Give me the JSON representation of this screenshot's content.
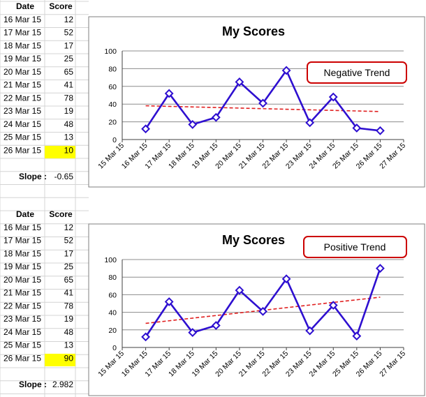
{
  "tables": [
    {
      "headers": {
        "date": "Date",
        "score": "Score"
      },
      "rows": [
        {
          "date": "16 Mar 15",
          "score": "12"
        },
        {
          "date": "17 Mar 15",
          "score": "52"
        },
        {
          "date": "18 Mar 15",
          "score": "17"
        },
        {
          "date": "19 Mar 15",
          "score": "25"
        },
        {
          "date": "20 Mar 15",
          "score": "65"
        },
        {
          "date": "21 Mar 15",
          "score": "41"
        },
        {
          "date": "22 Mar 15",
          "score": "78"
        },
        {
          "date": "23 Mar 15",
          "score": "19"
        },
        {
          "date": "24 Mar 15",
          "score": "48"
        },
        {
          "date": "25 Mar 15",
          "score": "13"
        },
        {
          "date": "26 Mar 15",
          "score": "10"
        }
      ],
      "slope_label": "Slope :",
      "slope_value": "-0.65",
      "highlight_color": "#ffff00"
    },
    {
      "headers": {
        "date": "Date",
        "score": "Score"
      },
      "rows": [
        {
          "date": "16 Mar 15",
          "score": "12"
        },
        {
          "date": "17 Mar 15",
          "score": "52"
        },
        {
          "date": "18 Mar 15",
          "score": "17"
        },
        {
          "date": "19 Mar 15",
          "score": "25"
        },
        {
          "date": "20 Mar 15",
          "score": "65"
        },
        {
          "date": "21 Mar 15",
          "score": "41"
        },
        {
          "date": "22 Mar 15",
          "score": "78"
        },
        {
          "date": "23 Mar 15",
          "score": "19"
        },
        {
          "date": "24 Mar 15",
          "score": "48"
        },
        {
          "date": "25 Mar 15",
          "score": "13"
        },
        {
          "date": "26 Mar 15",
          "score": "90"
        }
      ],
      "slope_label": "Slope :",
      "slope_value": "2.982",
      "highlight_color": "#ffff00"
    }
  ],
  "chart_data": [
    {
      "type": "line",
      "title": "My Scores",
      "x": [
        "16 Mar 15",
        "17 Mar 15",
        "18 Mar 15",
        "19 Mar 15",
        "20 Mar 15",
        "21 Mar 15",
        "22 Mar 15",
        "23 Mar 15",
        "24 Mar 15",
        "25 Mar 15",
        "26 Mar 15"
      ],
      "x_tick_labels": [
        "15 Mar 15",
        "16 Mar 15",
        "17 Mar 15",
        "18 Mar 15",
        "19 Mar 15",
        "20 Mar 15",
        "21 Mar 15",
        "22 Mar 15",
        "23 Mar 15",
        "24 Mar 15",
        "25 Mar 15",
        "26 Mar 15",
        "27 Mar 15"
      ],
      "series": [
        {
          "values": [
            12,
            52,
            17,
            25,
            65,
            41,
            78,
            19,
            48,
            13,
            10
          ],
          "color": "#2e0fd0",
          "marker": "diamond"
        }
      ],
      "trendline": {
        "style": "dashed",
        "color": "#e02020",
        "start": 38.1,
        "end": 31.6
      },
      "ylim": [
        0,
        100
      ],
      "y_ticks": [
        "0",
        "20",
        "40",
        "60",
        "80",
        "100"
      ],
      "grid": true,
      "annotation": {
        "text": "Negative Trend",
        "border_color": "#cc0000"
      }
    },
    {
      "type": "line",
      "title": "My Scores",
      "x": [
        "16 Mar 15",
        "17 Mar 15",
        "18 Mar 15",
        "19 Mar 15",
        "20 Mar 15",
        "21 Mar 15",
        "22 Mar 15",
        "23 Mar 15",
        "24 Mar 15",
        "25 Mar 15",
        "26 Mar 15"
      ],
      "x_tick_labels": [
        "15 Mar 15",
        "16 Mar 15",
        "17 Mar 15",
        "18 Mar 15",
        "19 Mar 15",
        "20 Mar 15",
        "21 Mar 15",
        "22 Mar 15",
        "23 Mar 15",
        "24 Mar 15",
        "25 Mar 15",
        "26 Mar 15",
        "27 Mar 15"
      ],
      "series": [
        {
          "values": [
            12,
            52,
            17,
            25,
            65,
            41,
            78,
            19,
            48,
            13,
            90
          ],
          "color": "#2e0fd0",
          "marker": "diamond"
        }
      ],
      "trendline": {
        "style": "dashed",
        "color": "#e02020",
        "start": 27.4,
        "end": 57.2
      },
      "ylim": [
        0,
        100
      ],
      "y_ticks": [
        "0",
        "20",
        "40",
        "60",
        "80",
        "100"
      ],
      "grid": true,
      "annotation": {
        "text": "Positive Trend",
        "border_color": "#cc0000"
      }
    }
  ]
}
